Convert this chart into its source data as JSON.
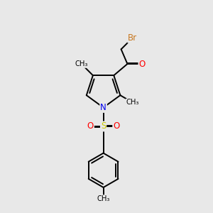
{
  "background_color": "#e8e8e8",
  "bond_color": "#000000",
  "bond_width": 1.4,
  "atom_colors": {
    "Br": "#c87820",
    "O": "#ff0000",
    "N": "#0000ee",
    "S": "#cccc00",
    "C": "#000000"
  },
  "font_size_atom": 8.5,
  "xlim": [
    0,
    10
  ],
  "ylim": [
    0,
    10
  ],
  "figsize": [
    3.0,
    3.0
  ],
  "dpi": 100
}
